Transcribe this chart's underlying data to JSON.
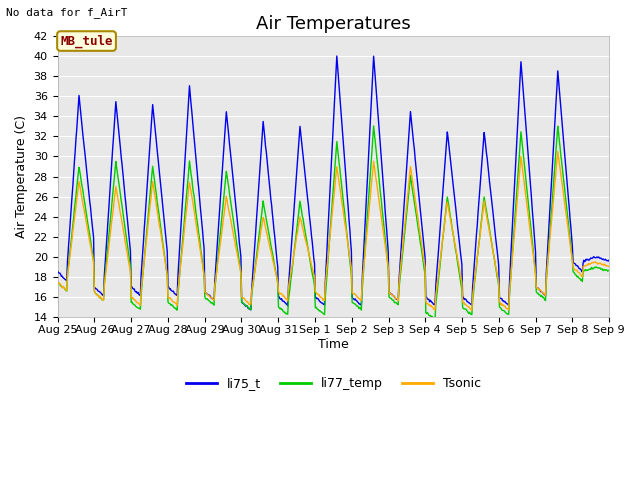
{
  "title": "Air Temperatures",
  "ylabel": "Air Temperature (C)",
  "xlabel": "Time",
  "top_left_text": "No data for f_AirT",
  "legend_label_text": "MB_tule",
  "ylim": [
    14,
    42
  ],
  "yticks": [
    14,
    16,
    18,
    20,
    22,
    24,
    26,
    28,
    30,
    32,
    34,
    36,
    38,
    40,
    42
  ],
  "xtick_labels": [
    "Aug 25",
    "Aug 26",
    "Aug 27",
    "Aug 28",
    "Aug 29",
    "Aug 30",
    "Aug 31",
    "Sep 1",
    "Sep 2",
    "Sep 3",
    "Sep 4",
    "Sep 5",
    "Sep 6",
    "Sep 7",
    "Sep 8",
    "Sep 9"
  ],
  "fig_bg_color": "#ffffff",
  "plot_bg_color": "#e8e8e8",
  "grid_color": "#ffffff",
  "line_colors": {
    "li75_t": "#0000ee",
    "li77_temp": "#00cc00",
    "Tsonic": "#ffaa00"
  },
  "legend_entries": [
    "li75_t",
    "li77_temp",
    "Tsonic"
  ],
  "title_fontsize": 13,
  "axis_label_fontsize": 9,
  "tick_fontsize": 8,
  "n_days": 15,
  "blue_peaks": [
    36,
    35.5,
    35.2,
    37,
    34.5,
    33.5,
    33,
    40,
    40,
    34.5,
    32.5,
    32.5,
    39.5,
    38.5,
    20
  ],
  "green_peaks": [
    29,
    29.5,
    29,
    29.5,
    28.5,
    25.5,
    25.5,
    31.5,
    33,
    28,
    26,
    26,
    32.5,
    33,
    19
  ],
  "orange_peaks": [
    27.5,
    27,
    27.5,
    27.5,
    26,
    24,
    24,
    29,
    29.5,
    29,
    25.5,
    25.5,
    30,
    30.5,
    19.5
  ],
  "blue_mins": [
    18.5,
    17,
    17,
    17,
    16.5,
    15.5,
    16,
    16,
    16,
    16.5,
    16,
    16,
    16,
    17,
    19.5
  ],
  "green_mins": [
    17.5,
    16.5,
    15.5,
    15.5,
    16,
    15.5,
    15,
    15,
    15.5,
    16,
    14.5,
    15,
    15,
    16.5,
    18.5
  ],
  "orange_mins": [
    17.5,
    16.5,
    16,
    16,
    16.5,
    16,
    16.5,
    16.5,
    16.5,
    16.5,
    15.5,
    15.5,
    15.5,
    17,
    19
  ]
}
